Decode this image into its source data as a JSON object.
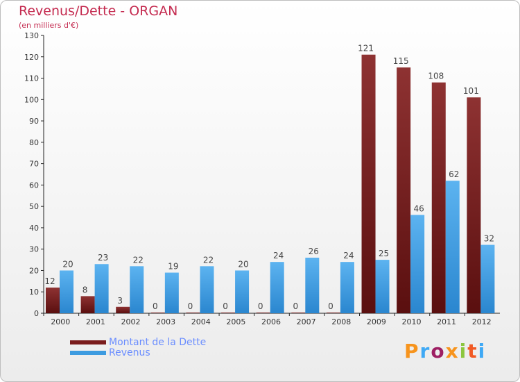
{
  "header": {
    "title": "Revenus/Dette - ORGAN",
    "subtitle": "(en milliers d'€)"
  },
  "brand": {
    "text": "Proxiti",
    "colors": [
      "#f7941d",
      "#3fa9f5",
      "#9e1f63",
      "#f7941d",
      "#8cc63f",
      "#f15a24",
      "#3fa9f5"
    ]
  },
  "colors": {
    "dette": "#7a1c1c",
    "revenus": "#3d9be0",
    "text": "#c42a4f",
    "legend_text": "#6a8dff"
  },
  "chart_data": {
    "type": "bar",
    "categories": [
      "2000",
      "2001",
      "2002",
      "2003",
      "2004",
      "2005",
      "2006",
      "2007",
      "2008",
      "2009",
      "2010",
      "2011",
      "2012"
    ],
    "series": [
      {
        "name": "Montant de la Dette",
        "values": [
          12,
          8,
          3,
          0,
          0,
          0,
          0,
          0,
          0,
          121,
          115,
          108,
          101
        ]
      },
      {
        "name": "Revenus",
        "values": [
          20,
          23,
          22,
          19,
          22,
          20,
          24,
          26,
          24,
          25,
          46,
          62,
          32
        ]
      }
    ],
    "yticks": [
      0,
      10,
      20,
      30,
      40,
      50,
      60,
      70,
      80,
      90,
      100,
      110,
      120,
      130
    ],
    "ylim": [
      0,
      130
    ],
    "grid": false,
    "legend_position": "bottom-left"
  }
}
